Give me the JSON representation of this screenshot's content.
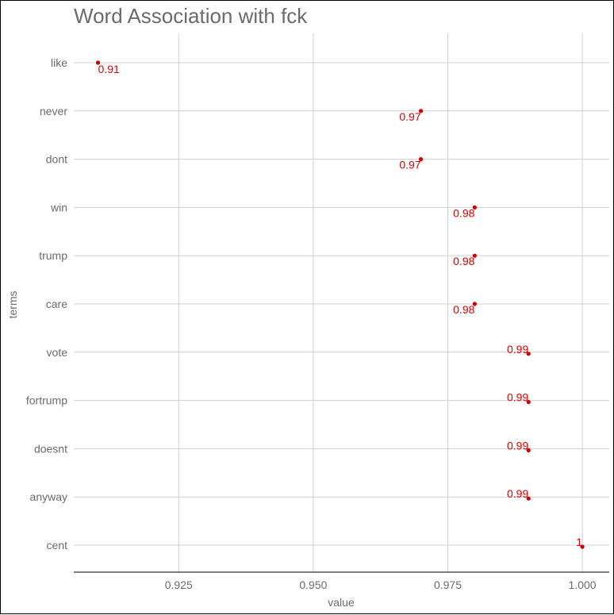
{
  "chart_data": {
    "type": "scatter",
    "title": "Word Association with fck",
    "xlabel": "value",
    "ylabel": "terms",
    "xlim": [
      0.9055,
      1.005
    ],
    "xticks": [
      0.925,
      0.95,
      0.975,
      1.0
    ],
    "xtick_labels": [
      "0.925",
      "0.950",
      "0.975",
      "1.000"
    ],
    "grid": true,
    "point_color": "#cc0000",
    "label_color": "#dd0000",
    "grid_color": "#d0d0d0",
    "points": [
      {
        "term": "like",
        "value": 0.91,
        "label": "0.91"
      },
      {
        "term": "never",
        "value": 0.97,
        "label": "0.97"
      },
      {
        "term": "dont",
        "value": 0.97,
        "label": "0.97"
      },
      {
        "term": "win",
        "value": 0.98,
        "label": "0.98"
      },
      {
        "term": "trump",
        "value": 0.98,
        "label": "0.98"
      },
      {
        "term": "care",
        "value": 0.98,
        "label": "0.98"
      },
      {
        "term": "vote",
        "value": 0.99,
        "label": "0.99"
      },
      {
        "term": "fortrump",
        "value": 0.99,
        "label": "0.99"
      },
      {
        "term": "doesnt",
        "value": 0.99,
        "label": "0.99"
      },
      {
        "term": "anyway",
        "value": 0.99,
        "label": "0.99"
      },
      {
        "term": "cent",
        "value": 1.0,
        "label": "1"
      }
    ]
  }
}
